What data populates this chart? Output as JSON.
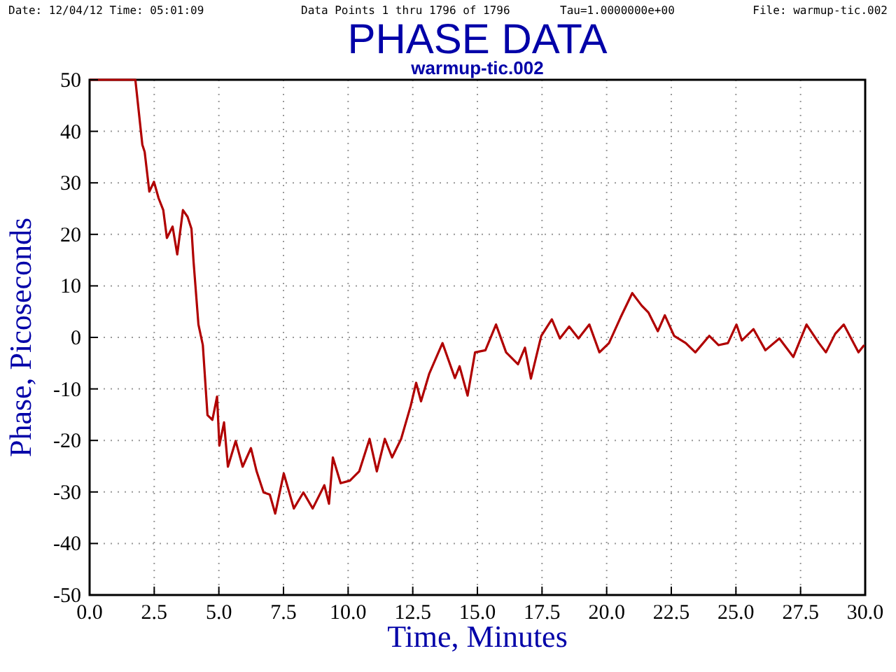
{
  "chart_data": {
    "type": "line",
    "title": "PHASE DATA",
    "subtitle": "warmup-tic.002",
    "xlabel": "Time, Minutes",
    "ylabel": "Phase, Picoseconds",
    "annotations": [
      "Date: 12/04/12  Time: 05:01:09",
      "Data Points 1 thru 1796 of 1796",
      "Tau=1.0000000e+00",
      "File: warmup-tic.002"
    ],
    "series": [
      {
        "color": "#b00000",
        "x": [
          0,
          1.77,
          2.04,
          2.13,
          2.31,
          2.49,
          2.67,
          2.85,
          2.99,
          3.21,
          3.39,
          3.61,
          3.79,
          3.94,
          4.02,
          4.21,
          4.38,
          4.56,
          4.75,
          4.93,
          5.02,
          5.2,
          5.35,
          5.65,
          5.92,
          6.24,
          6.46,
          6.73,
          6.97,
          7.18,
          7.51,
          7.9,
          8.27,
          8.63,
          9.08,
          9.26,
          9.41,
          9.71,
          10.07,
          10.43,
          10.83,
          11.11,
          11.42,
          11.7,
          12.05,
          12.42,
          12.63,
          12.82,
          13.14,
          13.65,
          14.13,
          14.31,
          14.62,
          14.91,
          15.31,
          15.72,
          16.11,
          16.57,
          16.84,
          17.07,
          17.47,
          17.88,
          18.19,
          18.55,
          18.91,
          19.33,
          19.72,
          20.09,
          20.54,
          20.99,
          21.35,
          21.62,
          21.98,
          22.25,
          22.61,
          23.06,
          23.43,
          23.97,
          24.33,
          24.69,
          25.02,
          25.23,
          25.68,
          26.14,
          26.68,
          27.22,
          27.73,
          28.21,
          28.48,
          28.84,
          29.17,
          29.74,
          29.96
        ],
        "values": [
          50,
          50,
          37.4,
          36,
          28.3,
          30.2,
          27,
          24.7,
          19.3,
          21.5,
          16.1,
          24.7,
          23.4,
          21.1,
          14.8,
          2.5,
          -1.5,
          -15.1,
          -16,
          -11.5,
          -21,
          -16.5,
          -25.1,
          -20.1,
          -25.1,
          -21.5,
          -26,
          -30.1,
          -30.5,
          -34.2,
          -26.4,
          -33.2,
          -30.1,
          -33.2,
          -28.7,
          -32.3,
          -23.3,
          -28.3,
          -27.8,
          -26,
          -19.7,
          -26,
          -19.7,
          -23.3,
          -19.7,
          -13.3,
          -8.8,
          -12.4,
          -7,
          -1.1,
          -7.9,
          -5.6,
          -11.3,
          -2.9,
          -2.5,
          2.5,
          -2.9,
          -5.2,
          -2,
          -8,
          0.3,
          3.5,
          -0.2,
          2.1,
          -0.2,
          2.5,
          -2.9,
          -1.1,
          3.9,
          8.6,
          6.2,
          4.8,
          1.2,
          4.3,
          0.3,
          -1.1,
          -2.9,
          0.3,
          -1.5,
          -1.1,
          2.5,
          -0.6,
          1.6,
          -2.5,
          -0.2,
          -3.8,
          2.5,
          -1.1,
          -2.9,
          0.7,
          2.5,
          -2.9,
          -1.5
        ]
      }
    ],
    "xlim": [
      0,
      30
    ],
    "ylim": [
      -50,
      50
    ],
    "xticks": [
      {
        "value": 0,
        "label": "0.0"
      },
      2.5,
      {
        "value": 5,
        "label": "5.0"
      },
      7.5,
      {
        "value": 10,
        "label": "10.0"
      },
      12.5,
      {
        "value": 15,
        "label": "15.0"
      },
      17.5,
      {
        "value": 20,
        "label": "20.0"
      },
      22.5,
      {
        "value": 25,
        "label": "25.0"
      },
      27.5,
      {
        "value": 30,
        "label": "30.0"
      }
    ],
    "yticks": [
      -50,
      -40,
      -30,
      -20,
      -10,
      0,
      10,
      20,
      30,
      40,
      50
    ],
    "grid": true,
    "marker": "none",
    "line_style": "solid"
  }
}
